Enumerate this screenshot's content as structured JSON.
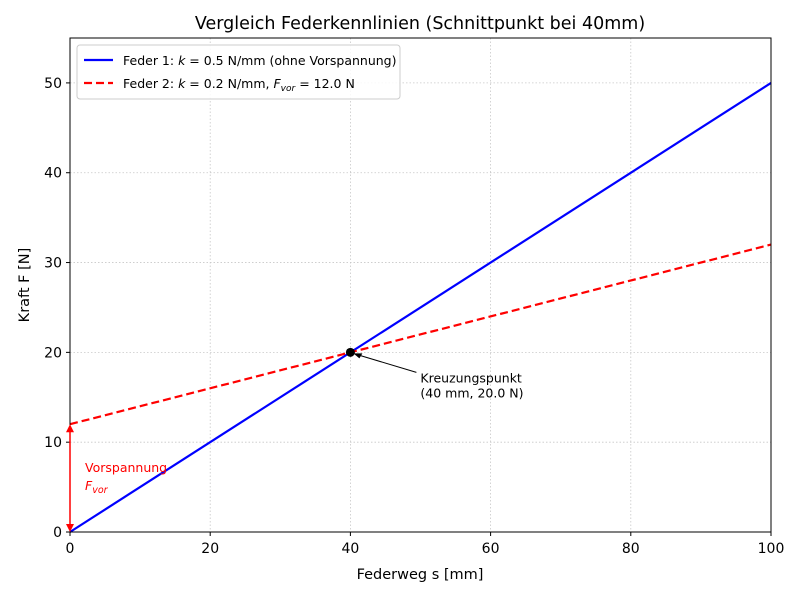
{
  "chart_data": {
    "type": "line",
    "title": "Vergleich Federkennlinien (Schnittpunkt bei 40mm)",
    "xlabel": "Federweg s [mm]",
    "ylabel": "Kraft F [N]",
    "xlim": [
      0,
      100
    ],
    "ylim": [
      0,
      55
    ],
    "xticks": [
      0,
      20,
      40,
      60,
      80,
      100
    ],
    "yticks": [
      0,
      10,
      20,
      30,
      40,
      50
    ],
    "grid": true,
    "legend_position": "top-left",
    "series": [
      {
        "name": "Feder 1: k = 0.5 N/mm (ohne Vorspannung)",
        "k": 0.5,
        "preload": 0,
        "x": [
          0,
          100
        ],
        "y": [
          0,
          50
        ],
        "color": "#0000ff",
        "style": "solid"
      },
      {
        "name": "Feder 2: k = 0.2 N/mm, F_vor = 12.0 N",
        "k": 0.2,
        "preload": 12.0,
        "x": [
          0,
          100
        ],
        "y": [
          12,
          32
        ],
        "color": "#ff0000",
        "style": "dashed"
      }
    ],
    "intersection": {
      "x": 40,
      "y": 20,
      "label_line1": "Kreuzungspunkt",
      "label_line2": "(40 mm, 20.0 N)"
    },
    "preload_annotation": {
      "label": "Vorspannung",
      "symbol": "F",
      "subscript": "vor",
      "x": 0,
      "from": 0,
      "to": 12,
      "color": "#ff0000"
    }
  }
}
